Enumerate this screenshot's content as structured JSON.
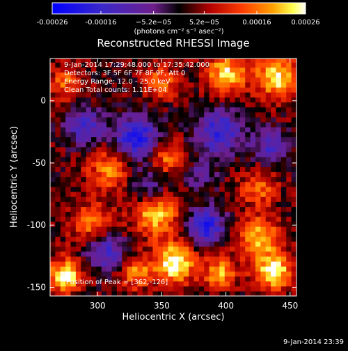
{
  "chart_data": {
    "type": "heatmap",
    "title": "Reconstructed RHESSI Image",
    "xlabel": "Heliocentric X (arcsec)",
    "ylabel": "Heliocentric Y (arcsec)",
    "xlim": [
      263,
      455
    ],
    "ylim": [
      -157,
      34
    ],
    "x_ticks": [
      300,
      350,
      400,
      450
    ],
    "y_ticks": [
      -150,
      -100,
      -50,
      0
    ],
    "grid": false,
    "colorbar": {
      "location": "top",
      "colormap": "blue-purple-red-orange-yellow-white",
      "range": [
        -0.00026,
        0.00026
      ],
      "tick_values": [
        -0.00026,
        -0.00016,
        -5.2e-05,
        5.2e-05,
        0.00016,
        0.00026
      ],
      "tick_labels": [
        "-0.00026",
        "-0.00016",
        "−5.2e−05",
        "5.2e−05",
        "0.00016",
        "0.00026"
      ],
      "unit_label": "(photons cm⁻² s⁻¹ asec⁻²)"
    },
    "annotations": [
      "9-Jan-2014 17:29:48.000 to 17:35:42.000",
      "Detectors: 3F 5F 6F 7F 8F 9F, Att 0",
      "Energy Range: 12.0 - 25.0 keV",
      "Clean     Total counts: 1.11E+04",
      "Position of Peak = [362,-126]"
    ],
    "footer_timestamp": "9-Jan-2014 23:39",
    "image_features": [
      {
        "x": 275,
        "y": -140,
        "level": 0.95,
        "sigma": 9
      },
      {
        "x": 360,
        "y": -130,
        "level": 1.0,
        "sigma": 11
      },
      {
        "x": 437,
        "y": -137,
        "level": 0.9,
        "sigma": 10
      },
      {
        "x": 425,
        "y": -110,
        "level": 0.7,
        "sigma": 12
      },
      {
        "x": 395,
        "y": -138,
        "level": 0.65,
        "sigma": 9
      },
      {
        "x": 330,
        "y": -138,
        "level": 0.6,
        "sigma": 9
      },
      {
        "x": 345,
        "y": -90,
        "level": 0.75,
        "sigma": 13
      },
      {
        "x": 310,
        "y": -55,
        "level": 0.6,
        "sigma": 12
      },
      {
        "x": 355,
        "y": -45,
        "level": 0.55,
        "sigma": 10
      },
      {
        "x": 295,
        "y": -100,
        "level": 0.55,
        "sigma": 12
      },
      {
        "x": 425,
        "y": -70,
        "level": 0.5,
        "sigma": 10
      },
      {
        "x": 440,
        "y": 20,
        "level": 0.85,
        "sigma": 12
      },
      {
        "x": 400,
        "y": 22,
        "level": 0.8,
        "sigma": 11
      },
      {
        "x": 350,
        "y": 15,
        "level": 0.55,
        "sigma": 9
      },
      {
        "x": 275,
        "y": 15,
        "level": 0.45,
        "sigma": 10
      },
      {
        "x": 330,
        "y": -30,
        "level": -0.9,
        "sigma": 12
      },
      {
        "x": 395,
        "y": -25,
        "level": -0.75,
        "sigma": 13
      },
      {
        "x": 290,
        "y": -20,
        "level": -0.65,
        "sigma": 10
      },
      {
        "x": 385,
        "y": -100,
        "level": -0.85,
        "sigma": 10
      },
      {
        "x": 305,
        "y": -120,
        "level": -0.7,
        "sigma": 11
      },
      {
        "x": 340,
        "y": -70,
        "level": -0.5,
        "sigma": 10
      },
      {
        "x": 435,
        "y": -35,
        "level": -0.6,
        "sigma": 9
      },
      {
        "x": 380,
        "y": -60,
        "level": -0.4,
        "sigma": 8
      }
    ]
  }
}
